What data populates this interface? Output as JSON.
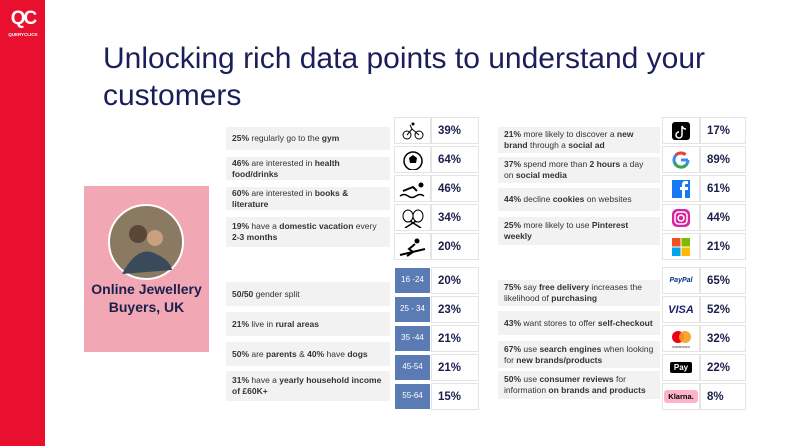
{
  "logo": {
    "mark": "QC",
    "name": "QUERYCLICK"
  },
  "title": "Unlocking rich data points to understand your customers",
  "persona": "Online Jewellery Buyers, UK",
  "interests": [
    [
      {
        "text": "25%",
        "bold": true
      },
      {
        "text": " regularly go to the ",
        "bold": false
      },
      {
        "text": "gym",
        "bold": true
      }
    ],
    [
      {
        "text": "46%",
        "bold": true
      },
      {
        "text": " are interested in ",
        "bold": false
      },
      {
        "text": "health food/drinks",
        "bold": true
      }
    ],
    [
      {
        "text": "60%",
        "bold": true
      },
      {
        "text": " are interested in ",
        "bold": false
      },
      {
        "text": "books & literature",
        "bold": true
      }
    ],
    [
      {
        "text": "19%",
        "bold": true
      },
      {
        "text": " have a ",
        "bold": false
      },
      {
        "text": "domestic vacation",
        "bold": true
      },
      {
        "text": " every ",
        "bold": false
      },
      {
        "text": "2-3 months",
        "bold": true
      }
    ]
  ],
  "interest_stats": [
    "39%",
    "64%",
    "46%",
    "34%",
    "20%"
  ],
  "demographics": [
    [
      {
        "text": "50/50",
        "bold": true
      },
      {
        "text": " gender split",
        "bold": false
      }
    ],
    [
      {
        "text": "21%",
        "bold": true
      },
      {
        "text": " live in ",
        "bold": false
      },
      {
        "text": "rural areas",
        "bold": true
      }
    ],
    [
      {
        "text": "50%",
        "bold": true
      },
      {
        "text": " are ",
        "bold": false
      },
      {
        "text": "parents",
        "bold": true
      },
      {
        "text": " & ",
        "bold": false
      },
      {
        "text": "40%",
        "bold": true
      },
      {
        "text": " have ",
        "bold": false
      },
      {
        "text": "dogs",
        "bold": true
      }
    ],
    [
      {
        "text": "31%",
        "bold": true
      },
      {
        "text": " have a ",
        "bold": false
      },
      {
        "text": "yearly household income of £60K+",
        "bold": true
      }
    ]
  ],
  "age_groups": [
    "16 -24",
    "25 - 34",
    "35 -44",
    "45-54",
    "55-64"
  ],
  "age_stats": [
    "20%",
    "23%",
    "21%",
    "21%",
    "15%"
  ],
  "social": [
    [
      {
        "text": "21%",
        "bold": true
      },
      {
        "text": " more likely to discover a ",
        "bold": false
      },
      {
        "text": "new brand",
        "bold": true
      },
      {
        "text": " through a ",
        "bold": false
      },
      {
        "text": "social ad",
        "bold": true
      }
    ],
    [
      {
        "text": "37%",
        "bold": true
      },
      {
        "text": " spend more than ",
        "bold": false
      },
      {
        "text": "2 hours",
        "bold": true
      },
      {
        "text": " a day on ",
        "bold": false
      },
      {
        "text": "social media",
        "bold": true
      }
    ],
    [
      {
        "text": "44%",
        "bold": true
      },
      {
        "text": " decline ",
        "bold": false
      },
      {
        "text": "cookies",
        "bold": true
      },
      {
        "text": " on websites",
        "bold": false
      }
    ],
    [
      {
        "text": "25%",
        "bold": true
      },
      {
        "text": " more likely to use ",
        "bold": false
      },
      {
        "text": "Pinterest weekly",
        "bold": true
      }
    ]
  ],
  "social_stats": [
    "17%",
    "89%",
    "61%",
    "44%",
    "21%"
  ],
  "shopping": [
    [
      {
        "text": "75%",
        "bold": true
      },
      {
        "text": " say ",
        "bold": false
      },
      {
        "text": "free delivery",
        "bold": true
      },
      {
        "text": " increases the likelihood of ",
        "bold": false
      },
      {
        "text": "purchasing",
        "bold": true
      }
    ],
    [
      {
        "text": "43%",
        "bold": true
      },
      {
        "text": " want stores to offer ",
        "bold": false
      },
      {
        "text": "self-checkout",
        "bold": true
      }
    ],
    [
      {
        "text": "67%",
        "bold": true
      },
      {
        "text": " use ",
        "bold": false
      },
      {
        "text": "search engines",
        "bold": true
      },
      {
        "text": " when looking for ",
        "bold": false
      },
      {
        "text": "new brands/products",
        "bold": true
      }
    ],
    [
      {
        "text": "50%",
        "bold": true
      },
      {
        "text": " use ",
        "bold": false
      },
      {
        "text": "consumer reviews",
        "bold": true
      },
      {
        "text": " for information ",
        "bold": false
      },
      {
        "text": "on brands and products",
        "bold": true
      }
    ]
  ],
  "payment_labels": [
    "PayPal",
    "VISA",
    "mastercard",
    "Pay",
    "Klarna."
  ],
  "payment_stats": [
    "65%",
    "52%",
    "32%",
    "22%",
    "8%"
  ]
}
